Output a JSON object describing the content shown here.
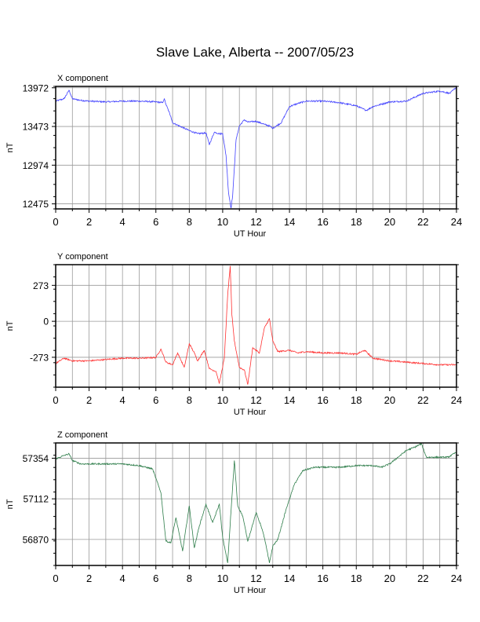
{
  "title": "Slave Lake, Alberta -- 2007/05/23",
  "chart_data": [
    {
      "type": "line",
      "panel_label": "X component",
      "xlabel": "UT Hour",
      "ylabel": "nT",
      "color": "#4040ff",
      "xlim": [
        0,
        24
      ],
      "ylim": [
        12410,
        13990
      ],
      "xticks": [
        0,
        2,
        4,
        6,
        8,
        10,
        12,
        14,
        16,
        18,
        20,
        22,
        24
      ],
      "yticks": [
        12475,
        12974,
        13473,
        13972
      ],
      "grid": true,
      "x": [
        0,
        0.5,
        0.8,
        1,
        1.5,
        2,
        3,
        4,
        5,
        6,
        6.4,
        6.5,
        6.6,
        6.9,
        7.0,
        7.5,
        8,
        8.5,
        9.0,
        9.2,
        9.5,
        9.8,
        10.0,
        10.2,
        10.35,
        10.5,
        10.6,
        10.8,
        11.0,
        11.3,
        11.5,
        12.0,
        12.5,
        12.8,
        13.0,
        13.5,
        14.0,
        14.5,
        15,
        16,
        17,
        18,
        18.6,
        19,
        20,
        21,
        22,
        23,
        23.6,
        24
      ],
      "y": [
        13800,
        13830,
        13940,
        13830,
        13810,
        13800,
        13790,
        13800,
        13800,
        13790,
        13780,
        13830,
        13760,
        13600,
        13520,
        13470,
        13420,
        13380,
        13390,
        13240,
        13400,
        13380,
        13380,
        13100,
        12620,
        12420,
        12590,
        13300,
        13480,
        13560,
        13530,
        13540,
        13500,
        13480,
        13450,
        13520,
        13730,
        13770,
        13800,
        13800,
        13780,
        13740,
        13680,
        13730,
        13790,
        13800,
        13900,
        13930,
        13900,
        13980
      ]
    },
    {
      "type": "line",
      "panel_label": "Y component",
      "xlabel": "UT Hour",
      "ylabel": "nT",
      "color": "#ff3030",
      "xlim": [
        0,
        24
      ],
      "ylim": [
        -500,
        430
      ],
      "xticks": [
        0,
        2,
        4,
        6,
        8,
        10,
        12,
        14,
        16,
        18,
        20,
        22,
        24
      ],
      "yticks": [
        -273,
        0,
        273
      ],
      "grid": true,
      "x": [
        0,
        0.5,
        1,
        2,
        3,
        4,
        5,
        6,
        6.3,
        6.6,
        7.0,
        7.3,
        7.7,
        8.0,
        8.3,
        8.5,
        8.9,
        9.2,
        9.6,
        9.8,
        10.1,
        10.3,
        10.45,
        10.55,
        10.7,
        11.0,
        11.3,
        11.5,
        11.8,
        12.2,
        12.5,
        12.8,
        13.0,
        13.3,
        14.0,
        14.5,
        15,
        16,
        17,
        18,
        18.5,
        19,
        20,
        21,
        22,
        23,
        24
      ],
      "y": [
        -320,
        -280,
        -300,
        -300,
        -290,
        -280,
        -280,
        -275,
        -210,
        -310,
        -330,
        -240,
        -350,
        -170,
        -240,
        -300,
        -220,
        -360,
        -380,
        -470,
        -280,
        200,
        420,
        50,
        -150,
        -350,
        -370,
        -480,
        -200,
        -240,
        -50,
        20,
        -150,
        -230,
        -220,
        -240,
        -230,
        -240,
        -240,
        -250,
        -220,
        -280,
        -300,
        -310,
        -320,
        -330,
        -330
      ]
    },
    {
      "type": "line",
      "panel_label": "Z component",
      "xlabel": "UT Hour",
      "ylabel": "nT",
      "color": "#2e7d4a",
      "xlim": [
        0,
        24
      ],
      "ylim": [
        56715,
        57445
      ],
      "xticks": [
        0,
        2,
        4,
        6,
        8,
        10,
        12,
        14,
        16,
        18,
        20,
        22,
        24
      ],
      "yticks": [
        56870,
        57112,
        57354
      ],
      "grid": true,
      "x": [
        0,
        0.5,
        0.8,
        1,
        1.5,
        2,
        3,
        4,
        5,
        5.8,
        6.3,
        6.6,
        6.9,
        7.2,
        7.6,
        8.0,
        8.3,
        8.6,
        9.0,
        9.4,
        9.8,
        10.0,
        10.3,
        10.5,
        10.7,
        10.9,
        11.2,
        11.5,
        11.8,
        12.0,
        12.3,
        12.5,
        12.8,
        13.0,
        13.3,
        13.8,
        14.3,
        14.8,
        15.5,
        16,
        17,
        18,
        19,
        19.5,
        20,
        20.5,
        21,
        21.5,
        21.9,
        22.2,
        22.5,
        23,
        23.5,
        24
      ],
      "y": [
        57350,
        57370,
        57380,
        57340,
        57320,
        57320,
        57320,
        57320,
        57310,
        57290,
        57150,
        56860,
        56850,
        57000,
        56800,
        57070,
        56820,
        56950,
        57080,
        56970,
        57080,
        56880,
        56730,
        57040,
        57340,
        57070,
        57010,
        56860,
        56960,
        57030,
        56950,
        56880,
        56730,
        56830,
        56870,
        57050,
        57200,
        57280,
        57300,
        57300,
        57300,
        57310,
        57310,
        57300,
        57320,
        57360,
        57400,
        57420,
        57440,
        57360,
        57360,
        57360,
        57360,
        57390
      ]
    }
  ]
}
